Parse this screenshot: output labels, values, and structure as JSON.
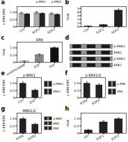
{
  "chart_data": [
    {
      "type": "bar",
      "annotations": [
        "a"
      ],
      "categories": [
        "Ctrl",
        "EGF1",
        "EGF2"
      ],
      "series": [
        {
          "name": "p-ERK1",
          "color": "#aaaaaa",
          "values": [
            0.95,
            1.0,
            0.92
          ],
          "errors": [
            0.06,
            0.07,
            0.06
          ]
        },
        {
          "name": "p-ERK2",
          "color": "#222222",
          "values": [
            0.88,
            0.92,
            0.85
          ],
          "errors": [
            0.05,
            0.06,
            0.05
          ]
        }
      ],
      "ylabel": "p-ERK/ERK",
      "ylim": [
        0,
        1.4
      ],
      "yticks": [
        0,
        0.5,
        {
          "value": 1.0,
          "label": "1.0"
        }
      ],
      "legend": "upper right"
    },
    {
      "type": "bar",
      "annotations": [
        "b"
      ],
      "categories": [
        "Ctrl",
        "EGF1",
        "EGF2"
      ],
      "values": [
        0.18,
        0.55,
        4.5
      ],
      "errors": [
        0.04,
        0.1,
        0.35
      ],
      "color": "#222222",
      "ylabel": "Fold",
      "ylim": [
        0,
        5.5
      ],
      "yticks": [
        0,
        1,
        2,
        3,
        4,
        5
      ]
    },
    {
      "type": "bar",
      "annotations": [
        "c"
      ],
      "title": "ERK",
      "categories": [
        "unstimulated",
        "EGF",
        "FGF"
      ],
      "values": [
        0.08,
        0.52,
        1.0
      ],
      "errors": [
        0.02,
        0.07,
        0.06
      ],
      "colors": [
        "#ffffff",
        "#888888",
        "#111111"
      ],
      "ylabel": "Fold",
      "ylim": [
        0,
        1.4
      ],
      "yticks": [
        0,
        0.5,
        {
          "value": 1.0,
          "label": "1.0"
        }
      ]
    },
    {
      "type": "blot",
      "annotations": [
        "d"
      ],
      "categories": [
        "p-ERK1",
        "ERK1",
        "p-ERK2",
        "ERK2"
      ]
    },
    {
      "type": "bar",
      "annotations": [
        "e"
      ],
      "title": "p-ERK1",
      "categories": [
        "Ctrl",
        "EGF"
      ],
      "values": [
        1.0,
        0.52
      ],
      "errors": [
        0.09,
        0.07
      ],
      "color": "#222222",
      "ylabel": "p-ERK/ERK",
      "ylim": [
        0,
        1.4
      ],
      "yticks": [
        0,
        0.5,
        {
          "value": 1.0,
          "label": "1.0"
        }
      ]
    },
    {
      "type": "blot",
      "categories": [
        "p-ERK1",
        "ERK1"
      ]
    },
    {
      "type": "bar",
      "annotations": [
        "f"
      ],
      "title": "p-ERK1/2",
      "categories": [
        "EGFa",
        "EGFb"
      ],
      "values": [
        1.0,
        0.88
      ],
      "errors": [
        0.1,
        0.09
      ],
      "color": "#222222",
      "ylabel": "p-ERK/ERK",
      "ylim": [
        0,
        1.4
      ],
      "yticks": [
        0,
        0.5,
        {
          "value": 1.0,
          "label": "1.0"
        }
      ]
    },
    {
      "type": "blot",
      "categories": [
        "p-ERK",
        "ERK"
      ]
    },
    {
      "type": "bar",
      "annotations": [
        "g"
      ],
      "title": "MEK1/2",
      "categories": [
        "EGFa",
        "EGFb"
      ],
      "values": [
        1.0,
        0.62
      ],
      "errors": [
        0.09,
        0.07
      ],
      "color": "#222222",
      "ylabel": "p-ERK/ERK",
      "ylim": [
        0,
        1.4
      ],
      "yticks": [
        0,
        0.5,
        {
          "value": 1.0,
          "label": "1.0"
        }
      ]
    },
    {
      "type": "blot",
      "categories": [
        "p-MEK",
        "MEK",
        "ERK"
      ]
    },
    {
      "type": "bar",
      "annotations": [
        "h"
      ],
      "categories": [
        "ctrl",
        "EGF1",
        "EGF2"
      ],
      "values": [
        0.22,
        0.78,
        1.0
      ],
      "errors": [
        0.05,
        0.09,
        0.08
      ],
      "color": "#222222",
      "ylabel": "Fold",
      "ylim": [
        0,
        1.4
      ],
      "yticks": [
        0,
        0.5,
        {
          "value": 1.0,
          "label": "1.0"
        }
      ]
    }
  ]
}
